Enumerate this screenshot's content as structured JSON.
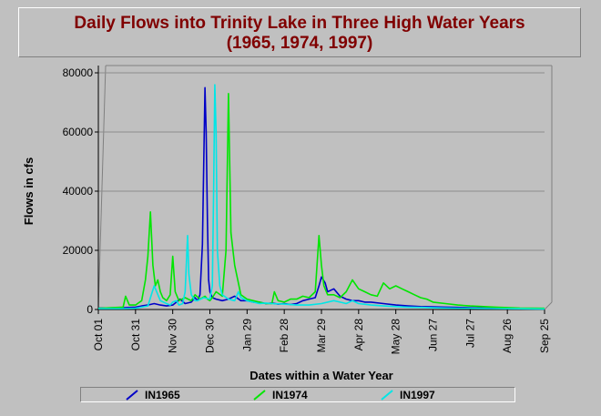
{
  "title_lines": [
    "Daily Flows into Trinity Lake in Three High Water Years",
    "(1965, 1974, 1997)"
  ],
  "chart_data": {
    "type": "line",
    "title": "Daily Flows into Trinity Lake in Three High Water Years (1965, 1974, 1997)",
    "xlabel": "Dates within a Water Year",
    "ylabel": "Flows in cfs",
    "x_tick_labels": [
      "Oct 01",
      "Oct 31",
      "Nov 30",
      "Dec 30",
      "Jan 29",
      "Feb 28",
      "Mar 29",
      "Apr 28",
      "May 28",
      "Jun 27",
      "Jul 27",
      "Aug 26",
      "Sep 25"
    ],
    "y_ticks": [
      0,
      20000,
      40000,
      60000,
      80000
    ],
    "xlim": [
      0,
      360
    ],
    "ylim": [
      0,
      80000
    ],
    "grid": true,
    "legend_position": "bottom",
    "series": [
      {
        "name": "IN1965",
        "color": "#0000c8",
        "x": [
          0,
          20,
          30,
          35,
          40,
          45,
          50,
          55,
          60,
          63,
          66,
          70,
          75,
          78,
          80,
          82,
          84,
          86,
          87,
          88,
          89,
          90,
          92,
          95,
          100,
          105,
          110,
          115,
          120,
          125,
          130,
          135,
          140,
          145,
          150,
          155,
          160,
          165,
          170,
          175,
          178,
          180,
          183,
          185,
          190,
          195,
          200,
          205,
          210,
          215,
          220,
          230,
          240,
          250,
          260,
          270,
          280,
          290,
          300,
          310,
          320,
          330,
          340,
          350,
          360
        ],
        "y": [
          500,
          600,
          800,
          1200,
          1500,
          2000,
          1500,
          1200,
          1500,
          2500,
          3500,
          2000,
          2500,
          4000,
          3000,
          5000,
          22000,
          75000,
          60000,
          30000,
          10000,
          6000,
          4000,
          3500,
          3000,
          3500,
          4500,
          3000,
          3000,
          2500,
          2500,
          2000,
          2200,
          1800,
          2000,
          1700,
          2000,
          3000,
          3500,
          4000,
          8000,
          11000,
          9000,
          6000,
          7000,
          4500,
          3500,
          3000,
          3000,
          2500,
          2500,
          2000,
          1500,
          1200,
          1000,
          900,
          800,
          700,
          600,
          500,
          450,
          400,
          350,
          300,
          300
        ]
      },
      {
        "name": "IN1974",
        "color": "#00e600",
        "x": [
          0,
          10,
          20,
          22,
          25,
          30,
          35,
          38,
          40,
          42,
          44,
          46,
          48,
          50,
          52,
          55,
          58,
          60,
          62,
          65,
          70,
          75,
          78,
          82,
          86,
          88,
          90,
          92,
          95,
          100,
          103,
          105,
          107,
          110,
          115,
          120,
          125,
          130,
          135,
          140,
          142,
          145,
          150,
          155,
          160,
          165,
          170,
          175,
          178,
          180,
          182,
          185,
          190,
          195,
          200,
          205,
          210,
          215,
          220,
          225,
          230,
          235,
          240,
          245,
          250,
          255,
          260,
          265,
          270,
          280,
          290,
          300,
          320,
          340,
          360
        ],
        "y": [
          400,
          600,
          800,
          4500,
          1500,
          1500,
          3000,
          10000,
          18000,
          33000,
          15000,
          8000,
          10000,
          6000,
          4000,
          3000,
          5000,
          18000,
          6000,
          3000,
          4000,
          3000,
          5000,
          3500,
          4500,
          3500,
          3000,
          4000,
          6000,
          4500,
          20000,
          73000,
          26000,
          15000,
          5000,
          3500,
          3000,
          2500,
          2000,
          2000,
          6000,
          3000,
          2500,
          3500,
          3500,
          4500,
          4000,
          6000,
          25000,
          15000,
          8000,
          5000,
          5000,
          4000,
          6000,
          10000,
          7000,
          6000,
          5000,
          4500,
          9000,
          7000,
          8000,
          7000,
          6000,
          5000,
          4000,
          3500,
          2500,
          2000,
          1500,
          1200,
          800,
          500,
          400
        ]
      },
      {
        "name": "IN1997",
        "color": "#00e6e6",
        "x": [
          0,
          20,
          30,
          35,
          40,
          45,
          50,
          55,
          58,
          60,
          63,
          65,
          68,
          70,
          72,
          73,
          75,
          78,
          80,
          85,
          90,
          92,
          93,
          94,
          95,
          96,
          98,
          100,
          105,
          110,
          113,
          115,
          120,
          125,
          130,
          135,
          140,
          150,
          160,
          170,
          180,
          190,
          195,
          200,
          205,
          210,
          220,
          230,
          240,
          250,
          260,
          270,
          280,
          290,
          300,
          320,
          340,
          360
        ],
        "y": [
          300,
          300,
          400,
          800,
          1200,
          8000,
          3000,
          2000,
          1500,
          2500,
          3000,
          1500,
          2000,
          6000,
          25000,
          12000,
          5000,
          3000,
          3000,
          4000,
          3500,
          8000,
          40000,
          76000,
          60000,
          20000,
          8000,
          5000,
          3500,
          3000,
          6000,
          4000,
          3000,
          2500,
          2000,
          2200,
          2000,
          1800,
          1500,
          1500,
          2000,
          3000,
          2500,
          2000,
          3000,
          2000,
          1500,
          1200,
          1000,
          800,
          700,
          600,
          500,
          400,
          400,
          300,
          250,
          200
        ]
      }
    ]
  }
}
